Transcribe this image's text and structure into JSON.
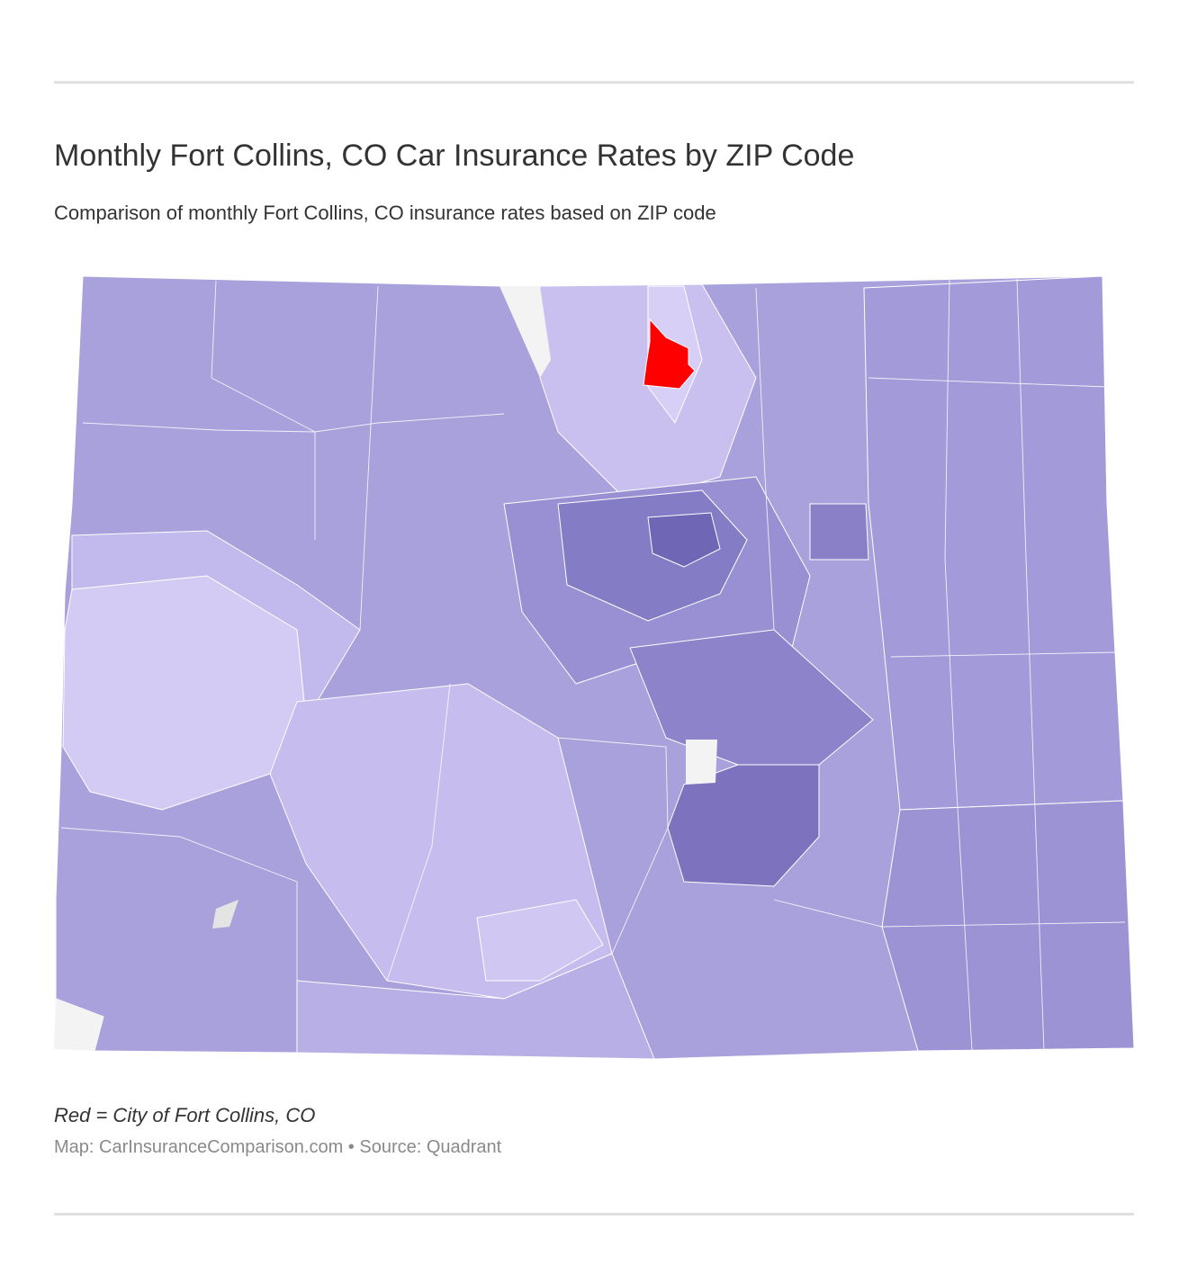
{
  "header": {
    "title": "Monthly Fort Collins, CO Car Insurance Rates by ZIP Code",
    "subtitle": "Comparison of monthly Fort Collins, CO insurance rates based on ZIP code"
  },
  "footer": {
    "note": "Red = City of Fort Collins, CO",
    "source": "Map: CarInsuranceComparison.com • Source: Quadrant"
  }
}
